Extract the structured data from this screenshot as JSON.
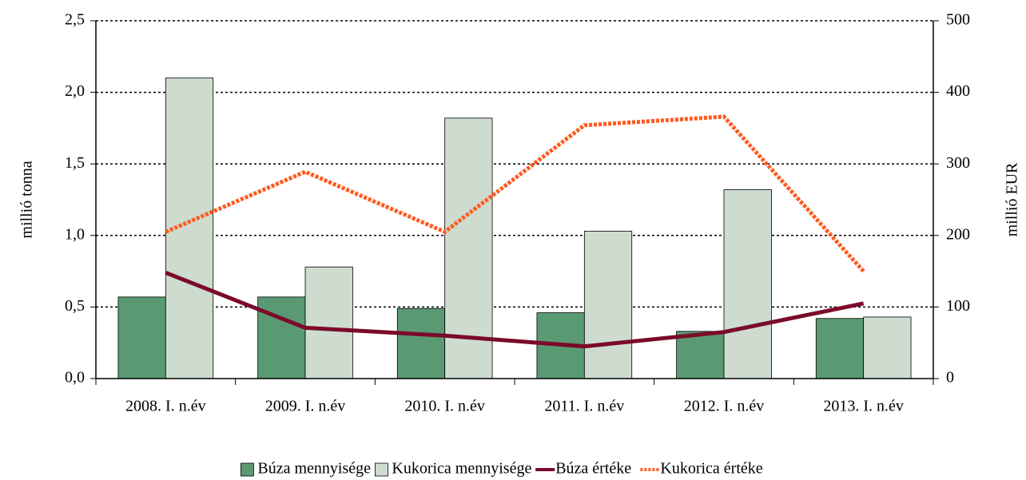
{
  "chart_data": {
    "type": "bar-line",
    "categories": [
      "2008. I. n.év",
      "2009. I. n.év",
      "2010. I. n.év",
      "2011. I. n.év",
      "2012. I. n.év",
      "2013. I. n.év"
    ],
    "series": [
      {
        "name": "Búza mennyisége",
        "type": "bar",
        "color": "#5a9a72",
        "values": [
          0.57,
          0.57,
          0.49,
          0.46,
          0.33,
          0.42
        ]
      },
      {
        "name": "Kukorica mennyisége",
        "type": "bar",
        "color": "#cddccf",
        "values": [
          2.1,
          0.78,
          1.82,
          1.03,
          1.32,
          0.43
        ]
      },
      {
        "name": "Búza értéke",
        "type": "line",
        "axis": "y2",
        "color": "#7b0a2a",
        "values": [
          148,
          71,
          60,
          45,
          65,
          105
        ]
      },
      {
        "name": "Kukorica  értéke",
        "type": "line",
        "axis": "y2",
        "dashed": true,
        "color": "#ff5a1f",
        "values": [
          205,
          289,
          205,
          354,
          366,
          150
        ]
      }
    ],
    "ylabel": "millió tonna",
    "y2label": "millió EUR",
    "ylim": [
      0,
      2.5
    ],
    "yticks": [
      {
        "value": 0,
        "label": "0,0"
      },
      {
        "value": 0.5,
        "label": "0,5"
      },
      {
        "value": 1,
        "label": "1,0"
      },
      {
        "value": 1.5,
        "label": "1,5"
      },
      {
        "value": 2,
        "label": "2,0"
      },
      {
        "value": 2.5,
        "label": "2,5"
      }
    ],
    "y2lim": [
      0,
      500
    ],
    "y2ticks": [
      0,
      100,
      200,
      300,
      400,
      500
    ],
    "grid": true,
    "legend": "bottom"
  }
}
